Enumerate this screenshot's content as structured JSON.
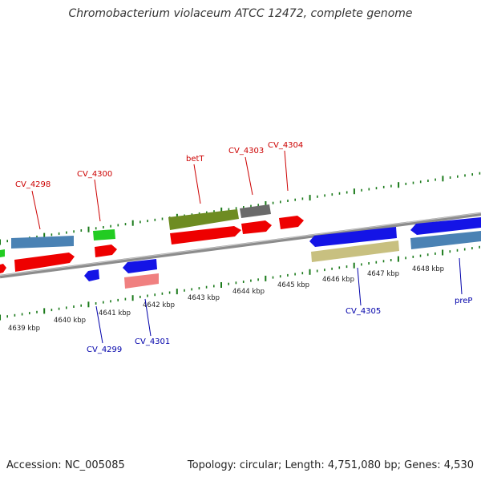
{
  "title": "Chromobacterium violaceum ATCC 12472, complete genome",
  "footer": {
    "accession": "Accession: NC_005085",
    "stats": "Topology: circular; Length: 4,751,080 bp; Genes: 4,530"
  },
  "colors": {
    "forward_label": "#cc0000",
    "reverse_label": "#0000aa",
    "backbone": "#8c8c8c",
    "ticks": "#1a7a1a",
    "cds": "#ee0000",
    "gene_fwd_olive": "#6e8c22",
    "gene_fwd_blue": "#4a82b4",
    "gene_green": "#22cc22",
    "gene_gray": "#6a6a6a",
    "gene_rev_blue": "#1414e6",
    "gene_khaki": "#c8c080",
    "gene_pink": "#f08080"
  },
  "scale_labels": [
    "4639 kbp",
    "4640 kbp",
    "4641 kbp",
    "4642 kbp",
    "4643 kbp",
    "4644 kbp",
    "4645 kbp",
    "4646 kbp",
    "4647 kbp",
    "4648 kbp"
  ],
  "gene_labels": {
    "forward": [
      "CV_4298",
      "CV_4300",
      "betT",
      "CV_4303",
      "CV_4304"
    ],
    "reverse": [
      "CV_4299",
      "CV_4301",
      "CV_4305",
      "preP"
    ]
  }
}
